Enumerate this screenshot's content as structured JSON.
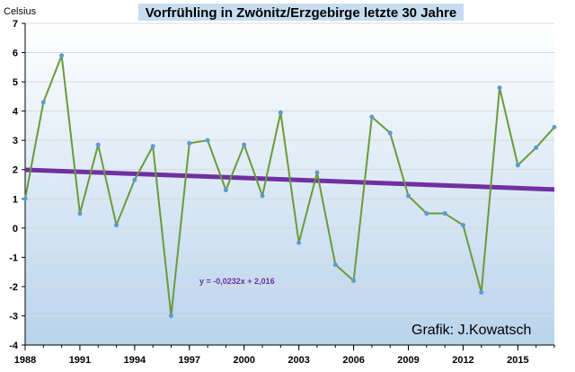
{
  "chart_data": {
    "type": "line",
    "title": "Vorfrühling in Zwönitz/Erzgebirge letzte 30 Jahre",
    "ylabel": "Celsius",
    "xlabel": "",
    "x": [
      1988,
      1989,
      1990,
      1991,
      1992,
      1993,
      1994,
      1995,
      1996,
      1997,
      1998,
      1999,
      2000,
      2001,
      2002,
      2003,
      2004,
      2005,
      2006,
      2007,
      2008,
      2009,
      2010,
      2011,
      2012,
      2013,
      2014,
      2015,
      2016,
      2017
    ],
    "series": [
      {
        "values": [
          1.0,
          4.3,
          5.9,
          0.5,
          2.85,
          0.1,
          1.65,
          2.8,
          -3.0,
          2.9,
          3.0,
          1.3,
          2.85,
          1.1,
          3.95,
          -0.5,
          1.9,
          -1.25,
          -1.8,
          3.8,
          3.25,
          1.1,
          0.5,
          0.5,
          0.1,
          -2.2,
          4.8,
          2.15,
          2.75,
          3.45
        ],
        "color": "#6a9a3c",
        "marker_color": "#5b9bd5"
      }
    ],
    "trendline": {
      "slope": -0.0232,
      "intercept": 2.016,
      "color": "#7030a0",
      "equation": "y = -0,0232x + 2,016"
    },
    "xticks": [
      "1988",
      "1991",
      "1994",
      "1997",
      "2000",
      "2003",
      "2006",
      "2009",
      "2012",
      "2015"
    ],
    "yticks": [
      "7",
      "6",
      "5",
      "4",
      "3",
      "2",
      "1",
      "0",
      "-1",
      "-2",
      "-3",
      "-4"
    ],
    "ylim": [
      -4,
      7
    ],
    "grid": "horizontal",
    "background_gradient": [
      "#ffffff",
      "#b9d3ec"
    ],
    "credit": "Grafik: J.Kowatsch"
  }
}
